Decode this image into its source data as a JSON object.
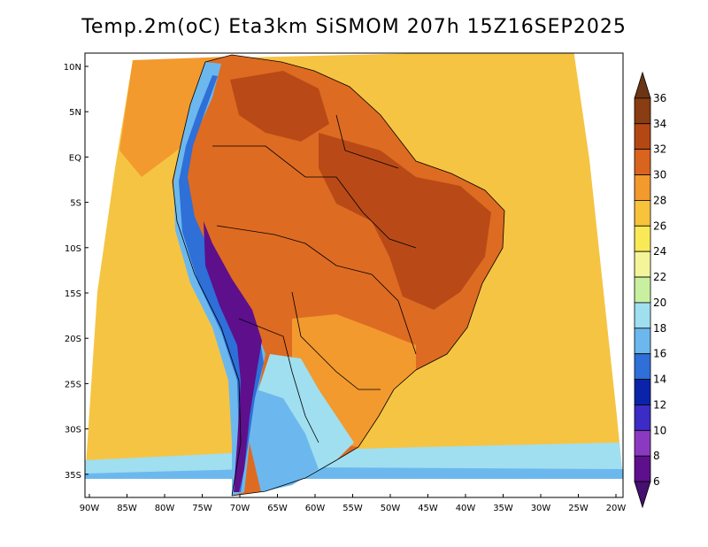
{
  "title": "Temp.2m(oC) Eta3km SiSMOM 207h 15Z16SEP2025",
  "map": {
    "lat_labels": [
      "10N",
      "5N",
      "EQ",
      "5S",
      "10S",
      "15S",
      "20S",
      "25S",
      "30S",
      "35S"
    ],
    "lon_labels": [
      "90W",
      "85W",
      "80W",
      "75W",
      "70W",
      "65W",
      "60W",
      "55W",
      "50W",
      "45W",
      "40W",
      "35W",
      "30W",
      "25W",
      "20W"
    ]
  },
  "colorbar": {
    "labels": [
      "36",
      "34",
      "32",
      "30",
      "28",
      "26",
      "24",
      "22",
      "20",
      "18",
      "16",
      "14",
      "12",
      "10",
      "8",
      "6"
    ],
    "colors": [
      "#6b3513",
      "#8a3c12",
      "#b34815",
      "#d9641e",
      "#f29a2e",
      "#f7c33d",
      "#f9e957",
      "#f4f59a",
      "#c9f0a0",
      "#9fdff0",
      "#6cb8ee",
      "#2e6fd8",
      "#0a23a8",
      "#3a2cc4",
      "#8a3ac0",
      "#5e0f8c",
      "#451070"
    ]
  },
  "fields": {
    "ocean": "#f6c443",
    "land_hot": "#de6b22",
    "land_very_hot": "#b94a17",
    "land_warm": "#f29a2e",
    "andes_cold": "#6cb8ee",
    "andes_colder": "#2e6fd8",
    "andes_coldest": "#5e0f8c",
    "south_cool": "#9fdff0"
  }
}
